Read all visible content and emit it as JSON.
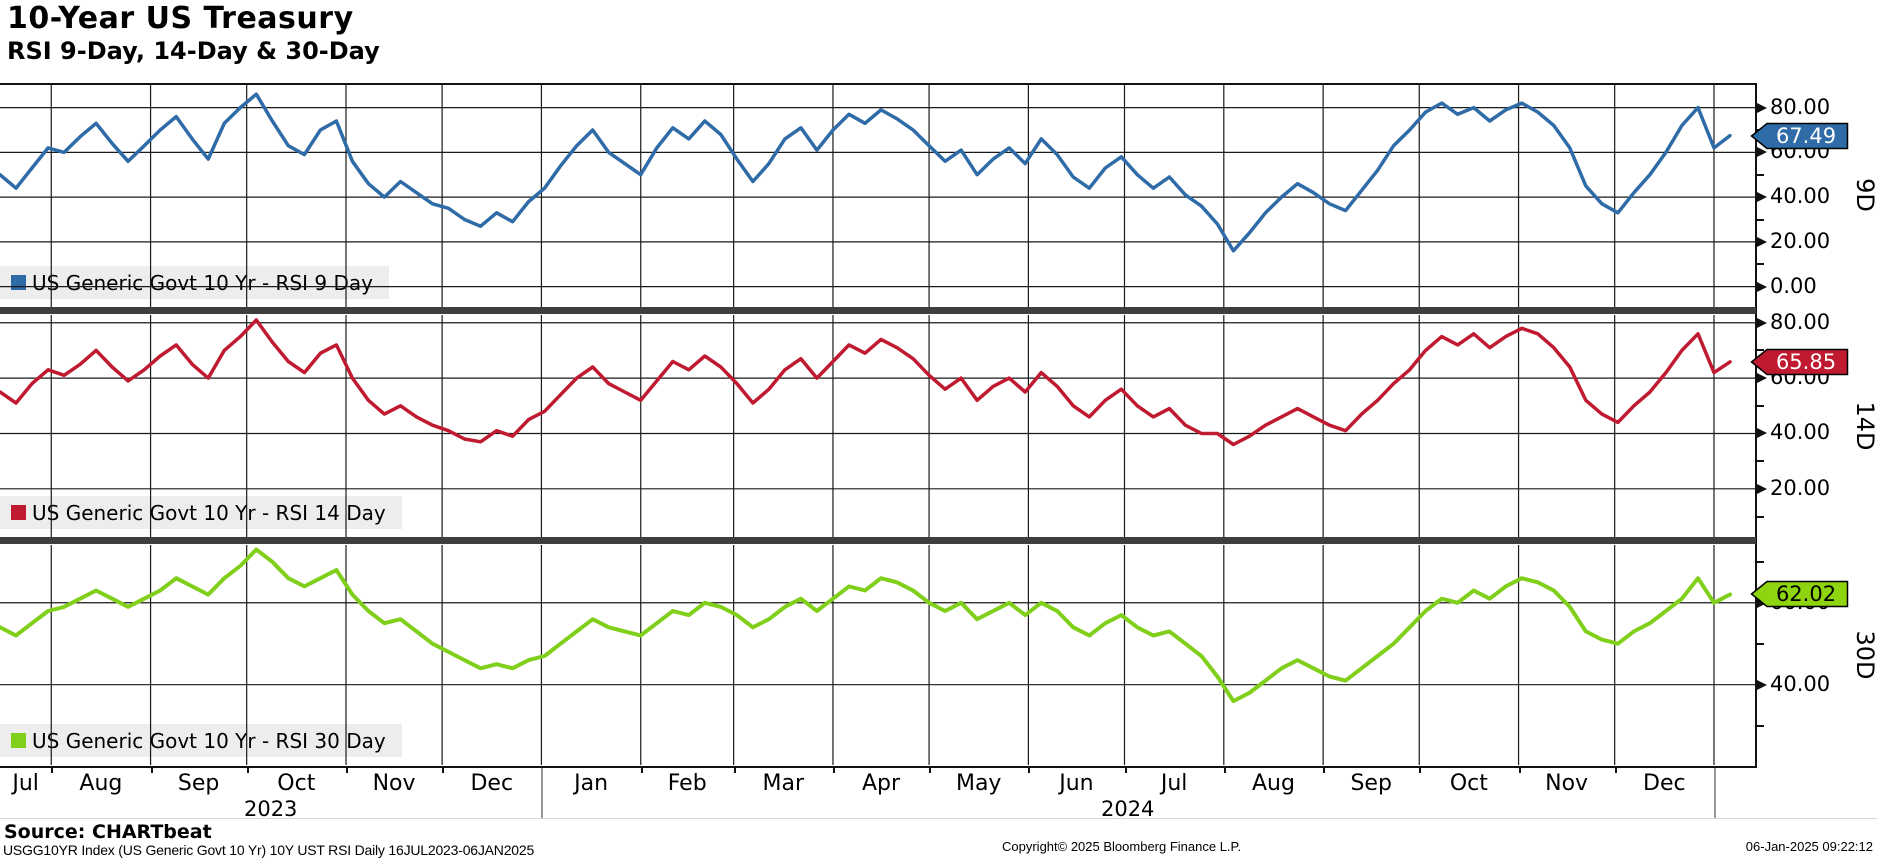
{
  "header": {
    "title": "10-Year US Treasury",
    "subtitle": "RSI 9-Day, 14-Day & 30-Day"
  },
  "footer": {
    "source": "Source: CHARTbeat",
    "description": "USGG10YR Index (US Generic Govt 10 Yr) 10Y UST RSI  Daily 16JUL2023-06JAN2025",
    "copyright": "Copyright© 2025 Bloomberg Finance L.P.",
    "timestamp": "06-Jan-2025 09:22:12"
  },
  "colors": {
    "grid": "#1a1a1a",
    "separator": "#3e3e3e",
    "legend_bg": "#ececec",
    "rsi9": "#2e6ba7",
    "rsi14": "#c01a31",
    "rsi30": "#80cf1b"
  },
  "x_axis": {
    "total_days": 540,
    "months": [
      {
        "label": "Jul",
        "start_day": 0,
        "end_day": 16
      },
      {
        "label": "Aug",
        "start_day": 16,
        "end_day": 47
      },
      {
        "label": "Sep",
        "start_day": 47,
        "end_day": 77
      },
      {
        "label": "Oct",
        "start_day": 77,
        "end_day": 108
      },
      {
        "label": "Nov",
        "start_day": 108,
        "end_day": 138
      },
      {
        "label": "Dec",
        "start_day": 138,
        "end_day": 169
      },
      {
        "label": "Jan",
        "start_day": 169,
        "end_day": 200
      },
      {
        "label": "Feb",
        "start_day": 200,
        "end_day": 229
      },
      {
        "label": "Mar",
        "start_day": 229,
        "end_day": 260
      },
      {
        "label": "Apr",
        "start_day": 260,
        "end_day": 290
      },
      {
        "label": "May",
        "start_day": 290,
        "end_day": 321
      },
      {
        "label": "Jun",
        "start_day": 321,
        "end_day": 351
      },
      {
        "label": "Jul",
        "start_day": 351,
        "end_day": 382
      },
      {
        "label": "Aug",
        "start_day": 382,
        "end_day": 413
      },
      {
        "label": "Sep",
        "start_day": 413,
        "end_day": 443
      },
      {
        "label": "Oct",
        "start_day": 443,
        "end_day": 474
      },
      {
        "label": "Nov",
        "start_day": 474,
        "end_day": 504
      },
      {
        "label": "Dec",
        "start_day": 504,
        "end_day": 535
      }
    ],
    "years": [
      {
        "label": "2023",
        "start_day": 0,
        "end_day": 169
      },
      {
        "label": "2024",
        "start_day": 169,
        "end_day": 535
      }
    ]
  },
  "chart_data": [
    {
      "type": "line",
      "panel_label": "9D",
      "legend": "US Generic Govt 10 Yr - RSI 9 Day",
      "color": "#2e6ba7",
      "badge": {
        "value": 67.49,
        "value_label": "67.49",
        "fill": "#2e6ba7",
        "text_color": "#ffffff"
      },
      "ylim": [
        -9.1,
        91.0
      ],
      "yticks_labeled": [
        0,
        20,
        40,
        60,
        80
      ],
      "yticks_minor": [
        10,
        30,
        50,
        70
      ],
      "x_step_days": 5,
      "values": [
        50,
        44,
        53,
        62,
        60,
        67,
        73,
        64,
        56,
        63,
        70,
        76,
        66,
        57,
        73,
        80,
        86,
        74,
        63,
        59,
        70,
        74,
        56,
        46,
        40,
        47,
        42,
        37,
        35,
        30,
        27,
        33,
        29,
        38,
        44,
        54,
        63,
        70,
        60,
        55,
        50,
        62,
        71,
        66,
        74,
        68,
        57,
        47,
        55,
        66,
        71,
        61,
        70,
        77,
        73,
        79,
        75,
        70,
        63,
        56,
        61,
        50,
        57,
        62,
        55,
        66,
        59,
        49,
        44,
        53,
        58,
        50,
        44,
        49,
        41,
        36,
        28,
        16,
        24,
        33,
        40,
        46,
        42,
        37,
        34,
        43,
        52,
        63,
        70,
        78,
        82,
        77,
        80,
        74,
        79,
        82,
        78,
        72,
        62,
        45,
        37,
        33,
        42,
        50,
        60,
        72,
        80,
        62,
        67.49
      ]
    },
    {
      "type": "line",
      "panel_label": "14D",
      "legend": "US Generic Govt 10 Yr - RSI 14 Day",
      "color": "#c01a31",
      "badge": {
        "value": 65.85,
        "value_label": "65.85",
        "fill": "#c01a31",
        "text_color": "#ffffff"
      },
      "ylim": [
        2.6,
        82.8
      ],
      "yticks_labeled": [
        20,
        40,
        60,
        80
      ],
      "yticks_minor": [
        10,
        30,
        50,
        70
      ],
      "x_step_days": 5,
      "values": [
        55,
        51,
        58,
        63,
        61,
        65,
        70,
        64,
        59,
        63,
        68,
        72,
        65,
        60,
        70,
        75,
        81,
        73,
        66,
        62,
        69,
        72,
        60,
        52,
        47,
        50,
        46,
        43,
        41,
        38,
        37,
        41,
        39,
        45,
        48,
        54,
        60,
        64,
        58,
        55,
        52,
        59,
        66,
        63,
        68,
        64,
        58,
        51,
        56,
        63,
        67,
        60,
        66,
        72,
        69,
        74,
        71,
        67,
        61,
        56,
        60,
        52,
        57,
        60,
        55,
        62,
        57,
        50,
        46,
        52,
        56,
        50,
        46,
        49,
        43,
        40,
        40,
        36,
        39,
        43,
        46,
        49,
        46,
        43,
        41,
        47,
        52,
        58,
        63,
        70,
        75,
        72,
        76,
        71,
        75,
        78,
        76,
        71,
        64,
        52,
        47,
        44,
        50,
        55,
        62,
        70,
        76,
        62,
        65.85
      ]
    },
    {
      "type": "line",
      "panel_label": "30D",
      "legend": "US Generic Govt 10 Yr - RSI 30 Day",
      "color": "#80cf1b",
      "badge": {
        "value": 62.02,
        "value_label": "62.02",
        "fill": "#8ed40f",
        "text_color": "#000000"
      },
      "ylim": [
        20.4,
        74.1
      ],
      "yticks_labeled": [
        40,
        60
      ],
      "yticks_minor": [
        30,
        50,
        70
      ],
      "x_step_days": 5,
      "values": [
        54,
        52,
        55,
        58,
        59,
        61,
        63,
        61,
        59,
        61,
        63,
        66,
        64,
        62,
        66,
        69,
        73,
        70,
        66,
        64,
        66,
        68,
        62,
        58,
        55,
        56,
        53,
        50,
        48,
        46,
        44,
        45,
        44,
        46,
        47,
        50,
        53,
        56,
        54,
        53,
        52,
        55,
        58,
        57,
        60,
        59,
        57,
        54,
        56,
        59,
        61,
        58,
        61,
        64,
        63,
        66,
        65,
        63,
        60,
        58,
        60,
        56,
        58,
        60,
        57,
        60,
        58,
        54,
        52,
        55,
        57,
        54,
        52,
        53,
        50,
        47,
        42,
        36,
        38,
        41,
        44,
        46,
        44,
        42,
        41,
        44,
        47,
        50,
        54,
        58,
        61,
        60,
        63,
        61,
        64,
        66,
        65,
        63,
        59,
        53,
        51,
        50,
        53,
        55,
        58,
        61,
        66,
        60,
        62.02
      ]
    }
  ]
}
